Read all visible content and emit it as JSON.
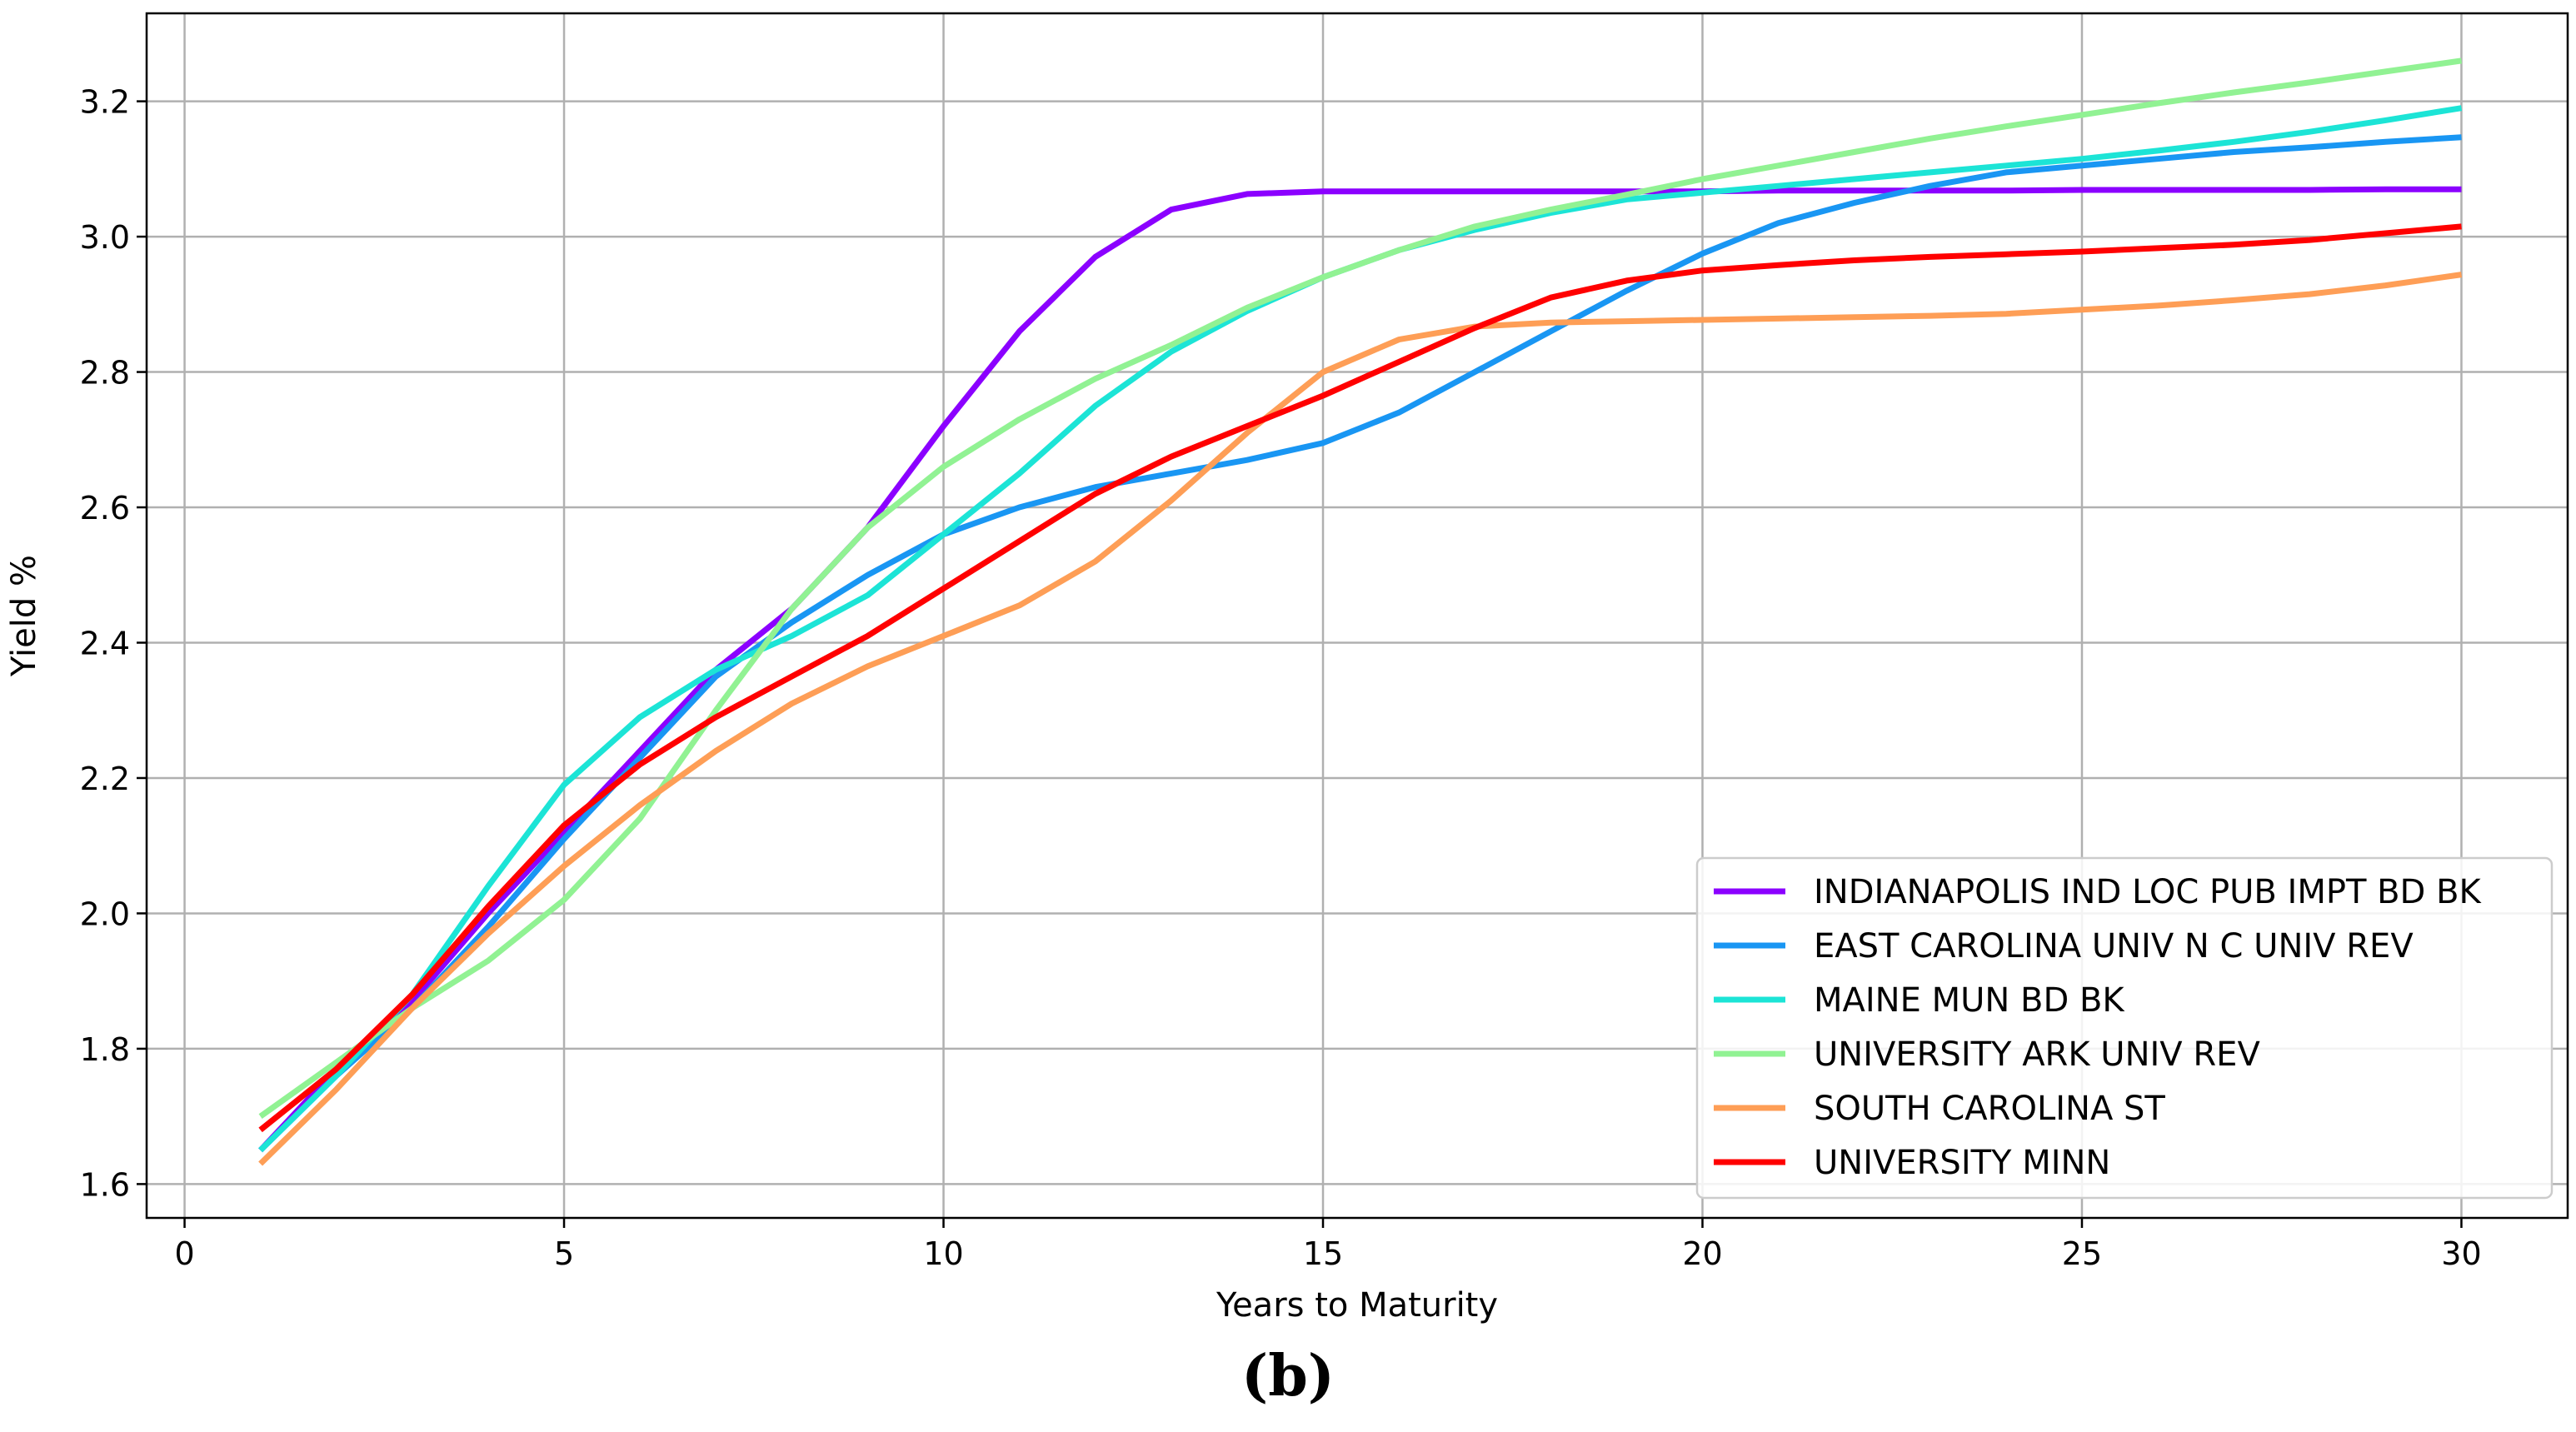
{
  "caption": "(b)",
  "chart_data": {
    "type": "line",
    "title": "",
    "xlabel": "Years to Maturity",
    "ylabel": "Yield %",
    "xlim": [
      -0.5,
      31.4
    ],
    "ylim": [
      1.55,
      3.33
    ],
    "xticks": [
      0,
      5,
      10,
      15,
      20,
      25,
      30
    ],
    "yticks": [
      1.6,
      1.8,
      2.0,
      2.2,
      2.4,
      2.6,
      2.8,
      3.0,
      3.2
    ],
    "xtick_labels": [
      "0",
      "5",
      "10",
      "15",
      "20",
      "25",
      "30"
    ],
    "ytick_labels": [
      "1.6",
      "1.8",
      "2.0",
      "2.2",
      "2.4",
      "2.6",
      "2.8",
      "3.0",
      "3.2"
    ],
    "grid": true,
    "legend_position": "lower-right",
    "x": [
      1,
      2,
      3,
      4,
      5,
      6,
      7,
      8,
      9,
      10,
      11,
      12,
      13,
      14,
      15,
      16,
      17,
      18,
      19,
      20,
      21,
      22,
      23,
      24,
      25,
      26,
      27,
      28,
      29,
      30
    ],
    "series": [
      {
        "name": "INDIANAPOLIS IND LOC PUB IMPT BD BK",
        "color": "#8b00ff",
        "values": [
          1.65,
          1.77,
          1.87,
          2.0,
          2.12,
          2.24,
          2.36,
          2.45,
          2.57,
          2.72,
          2.86,
          2.97,
          3.04,
          3.063,
          3.067,
          3.067,
          3.067,
          3.067,
          3.067,
          3.067,
          3.068,
          3.068,
          3.068,
          3.068,
          3.069,
          3.069,
          3.069,
          3.069,
          3.07,
          3.07
        ]
      },
      {
        "name": "EAST CAROLINA UNIV N C UNIV REV",
        "color": "#1996f3",
        "values": [
          1.65,
          1.76,
          1.86,
          1.98,
          2.11,
          2.23,
          2.35,
          2.43,
          2.5,
          2.56,
          2.6,
          2.63,
          2.65,
          2.67,
          2.695,
          2.74,
          2.8,
          2.86,
          2.92,
          2.975,
          3.02,
          3.05,
          3.075,
          3.095,
          3.105,
          3.115,
          3.125,
          3.132,
          3.14,
          3.147
        ]
      },
      {
        "name": "MAINE MUN BD BK",
        "color": "#1ce4d6",
        "values": [
          1.65,
          1.76,
          1.88,
          2.04,
          2.19,
          2.29,
          2.36,
          2.41,
          2.47,
          2.56,
          2.65,
          2.75,
          2.83,
          2.89,
          2.94,
          2.98,
          3.01,
          3.035,
          3.055,
          3.065,
          3.075,
          3.085,
          3.095,
          3.105,
          3.115,
          3.127,
          3.14,
          3.155,
          3.172,
          3.19
        ]
      },
      {
        "name": "UNIVERSITY ARK UNIV REV",
        "color": "#91f293",
        "values": [
          1.7,
          1.78,
          1.86,
          1.93,
          2.02,
          2.14,
          2.3,
          2.45,
          2.57,
          2.66,
          2.73,
          2.79,
          2.84,
          2.895,
          2.94,
          2.98,
          3.015,
          3.04,
          3.062,
          3.085,
          3.105,
          3.125,
          3.145,
          3.163,
          3.18,
          3.197,
          3.213,
          3.228,
          3.244,
          3.26
        ]
      },
      {
        "name": "SOUTH CAROLINA ST",
        "color": "#fe9e56",
        "values": [
          1.63,
          1.74,
          1.86,
          1.97,
          2.07,
          2.16,
          2.24,
          2.31,
          2.365,
          2.41,
          2.455,
          2.52,
          2.61,
          2.71,
          2.8,
          2.848,
          2.867,
          2.873,
          2.875,
          2.877,
          2.879,
          2.881,
          2.883,
          2.886,
          2.892,
          2.898,
          2.906,
          2.915,
          2.928,
          2.944
        ]
      },
      {
        "name": "UNIVERSITY MINN",
        "color": "#ff0000",
        "values": [
          1.68,
          1.77,
          1.88,
          2.01,
          2.13,
          2.22,
          2.29,
          2.35,
          2.41,
          2.48,
          2.55,
          2.62,
          2.675,
          2.72,
          2.765,
          2.815,
          2.865,
          2.91,
          2.935,
          2.95,
          2.958,
          2.965,
          2.97,
          2.974,
          2.978,
          2.983,
          2.988,
          2.995,
          3.005,
          3.015
        ]
      }
    ]
  }
}
